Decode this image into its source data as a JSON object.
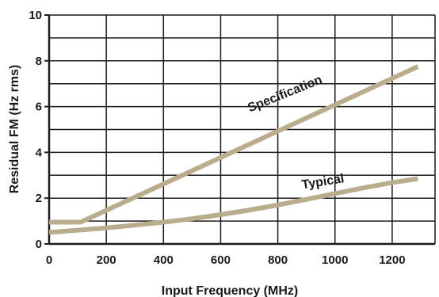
{
  "chart_data": {
    "type": "line",
    "title": "",
    "xlabel": "Input Frequency (MHz)",
    "ylabel": "Residual FM (Hz rms)",
    "xlim": [
      0,
      1350
    ],
    "ylim": [
      0,
      10
    ],
    "xticks": [
      0,
      200,
      400,
      600,
      800,
      1000,
      1200
    ],
    "yticks": [
      0,
      2,
      4,
      6,
      8,
      10
    ],
    "xtick_labels": [
      "0",
      "200",
      "400",
      "600",
      "800",
      "1000",
      "1200"
    ],
    "ytick_labels": [
      "0",
      "2",
      "4",
      "6",
      "8",
      "10"
    ],
    "grid": true,
    "legend": "none (series labeled inline)",
    "series": [
      {
        "name": "Specification",
        "color": "#b9ad8e",
        "x": [
          0,
          110,
          1290
        ],
        "y": [
          0.95,
          0.95,
          7.75
        ]
      },
      {
        "name": "Typical",
        "color": "#b9ad8e",
        "x": [
          0,
          100,
          200,
          300,
          400,
          500,
          600,
          700,
          800,
          900,
          1000,
          1100,
          1200,
          1290
        ],
        "y": [
          0.5,
          0.6,
          0.7,
          0.82,
          0.95,
          1.1,
          1.28,
          1.48,
          1.7,
          1.95,
          2.2,
          2.45,
          2.68,
          2.85
        ]
      }
    ]
  }
}
